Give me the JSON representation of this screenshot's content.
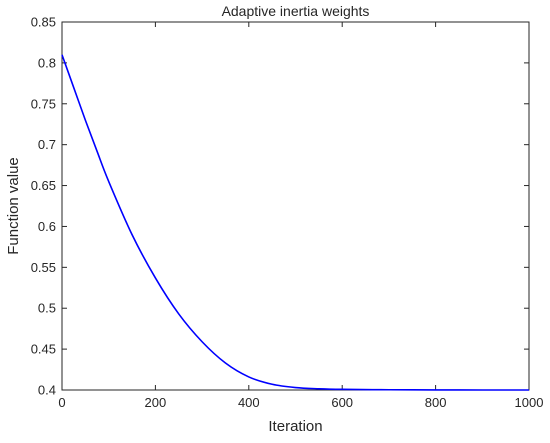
{
  "chart_data": {
    "type": "line",
    "title": "Adaptive inertia weights",
    "xlabel": "Iteration",
    "ylabel": "Function value",
    "xlim": [
      0,
      1000
    ],
    "ylim": [
      0.4,
      0.85
    ],
    "x_ticks": [
      0,
      200,
      400,
      600,
      800,
      1000
    ],
    "y_ticks": [
      0.4,
      0.45,
      0.5,
      0.55,
      0.6,
      0.65,
      0.7,
      0.75,
      0.8,
      0.85
    ],
    "x_tick_labels": [
      "0",
      "200",
      "400",
      "600",
      "800",
      "1000"
    ],
    "y_tick_labels": [
      "0.4",
      "0.45",
      "0.5",
      "0.55",
      "0.6",
      "0.65",
      "0.7",
      "0.75",
      "0.8",
      "0.85"
    ],
    "grid": false,
    "line_color": "#0000ff",
    "series": [
      {
        "x": [
          0,
          25,
          50,
          75,
          100,
          150,
          200,
          250,
          300,
          350,
          400,
          450,
          500,
          550,
          600,
          700,
          800,
          900,
          1000
        ],
        "values": [
          0.81,
          0.77,
          0.73,
          0.692,
          0.655,
          0.59,
          0.537,
          0.493,
          0.459,
          0.433,
          0.416,
          0.407,
          0.403,
          0.4015,
          0.4008,
          0.4003,
          0.4001,
          0.4,
          0.4
        ]
      }
    ]
  }
}
